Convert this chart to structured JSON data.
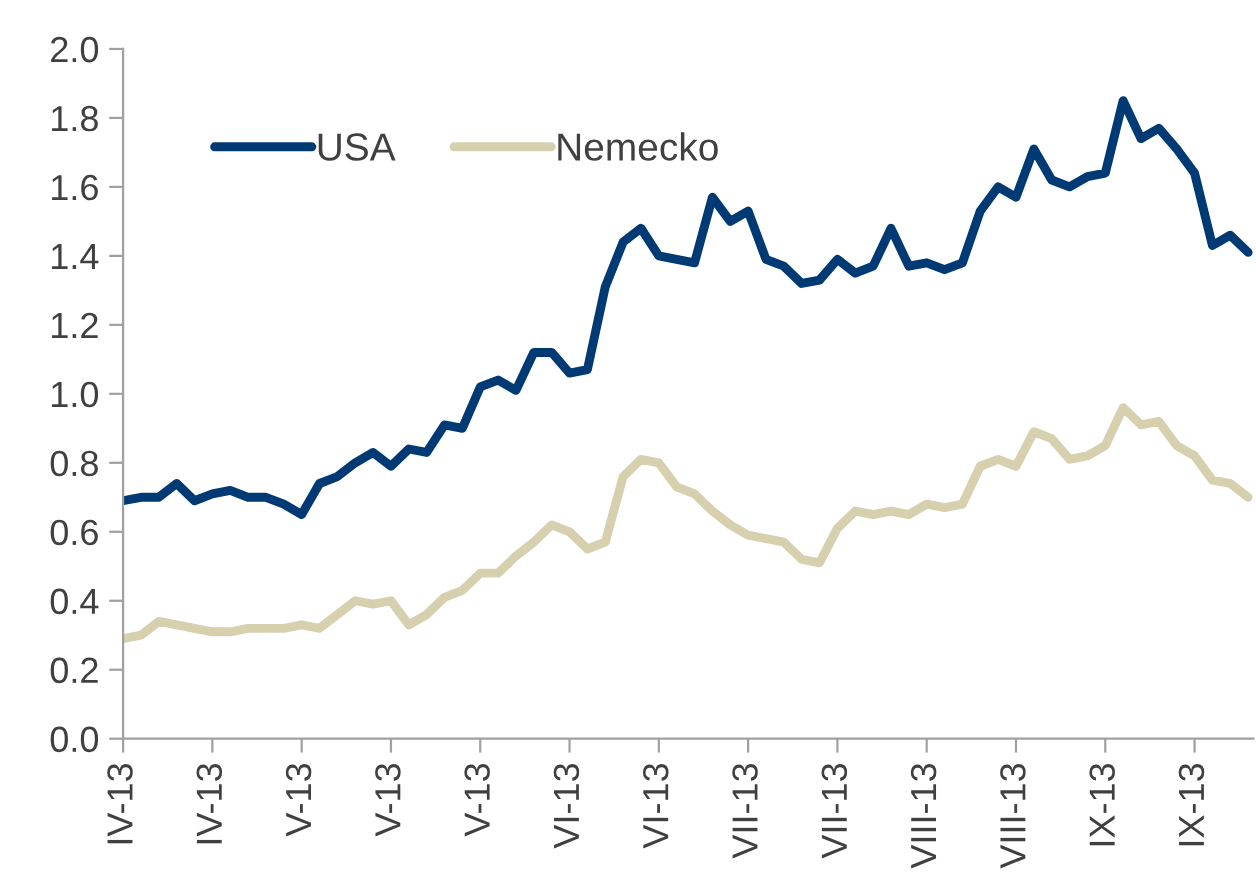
{
  "chart_data": {
    "type": "line",
    "legend": "top left",
    "grid": false,
    "line_style": "solid",
    "marker": "none",
    "categories": [
      "IV-13",
      null,
      null,
      null,
      null,
      "IV-13",
      null,
      null,
      null,
      null,
      "V-13",
      null,
      null,
      null,
      null,
      "V-13",
      null,
      null,
      null,
      null,
      "V-13",
      null,
      null,
      null,
      null,
      "VI-13",
      null,
      null,
      null,
      null,
      "VI-13",
      null,
      null,
      null,
      null,
      "VII-13",
      null,
      null,
      null,
      null,
      "VII-13",
      null,
      null,
      null,
      null,
      "VIII-13",
      null,
      null,
      null,
      null,
      "VIII-13",
      null,
      null,
      null,
      null,
      "IX-13",
      null,
      null,
      null,
      null,
      "IX-13",
      null,
      null,
      null
    ],
    "ylim": [
      0,
      2
    ],
    "yticks": [
      {
        "value": 0,
        "label": "0.0"
      },
      {
        "value": 0.2,
        "label": "0.2"
      },
      {
        "value": 0.4,
        "label": "0.4"
      },
      {
        "value": 0.6,
        "label": "0.6"
      },
      {
        "value": 0.8,
        "label": "0.8"
      },
      {
        "value": 1,
        "label": "1.0"
      },
      {
        "value": 1.2,
        "label": "1.2"
      },
      {
        "value": 1.4,
        "label": "1.4"
      },
      {
        "value": 1.6,
        "label": "1.6"
      },
      {
        "value": 1.8,
        "label": "1.8"
      },
      {
        "value": 2,
        "label": "2.0"
      }
    ],
    "series": [
      {
        "name": "USA",
        "color": "#003a75",
        "values": [
          0.69,
          0.7,
          0.7,
          0.74,
          0.69,
          0.71,
          0.72,
          0.7,
          0.7,
          0.68,
          0.65,
          0.74,
          0.76,
          0.8,
          0.83,
          0.79,
          0.84,
          0.83,
          0.91,
          0.9,
          1.02,
          1.04,
          1.01,
          1.12,
          1.12,
          1.06,
          1.07,
          1.31,
          1.44,
          1.48,
          1.4,
          1.39,
          1.38,
          1.57,
          1.5,
          1.53,
          1.39,
          1.37,
          1.32,
          1.33,
          1.39,
          1.35,
          1.37,
          1.48,
          1.37,
          1.38,
          1.36,
          1.38,
          1.53,
          1.6,
          1.57,
          1.71,
          1.62,
          1.6,
          1.63,
          1.64,
          1.85,
          1.74,
          1.77,
          1.71,
          1.64,
          1.43,
          1.46,
          1.41
        ]
      },
      {
        "name": "Nemecko",
        "color": "#d6d0ae",
        "values": [
          0.29,
          0.3,
          0.34,
          0.33,
          0.32,
          0.31,
          0.31,
          0.32,
          0.32,
          0.32,
          0.33,
          0.32,
          0.36,
          0.4,
          0.39,
          0.4,
          0.33,
          0.36,
          0.41,
          0.43,
          0.48,
          0.48,
          0.53,
          0.57,
          0.62,
          0.6,
          0.55,
          0.57,
          0.76,
          0.81,
          0.8,
          0.73,
          0.71,
          0.66,
          0.62,
          0.59,
          0.58,
          0.57,
          0.52,
          0.51,
          0.61,
          0.66,
          0.65,
          0.66,
          0.65,
          0.68,
          0.67,
          0.68,
          0.79,
          0.81,
          0.79,
          0.89,
          0.87,
          0.81,
          0.82,
          0.85,
          0.96,
          0.91,
          0.92,
          0.85,
          0.82,
          0.75,
          0.74,
          0.7
        ]
      }
    ]
  }
}
